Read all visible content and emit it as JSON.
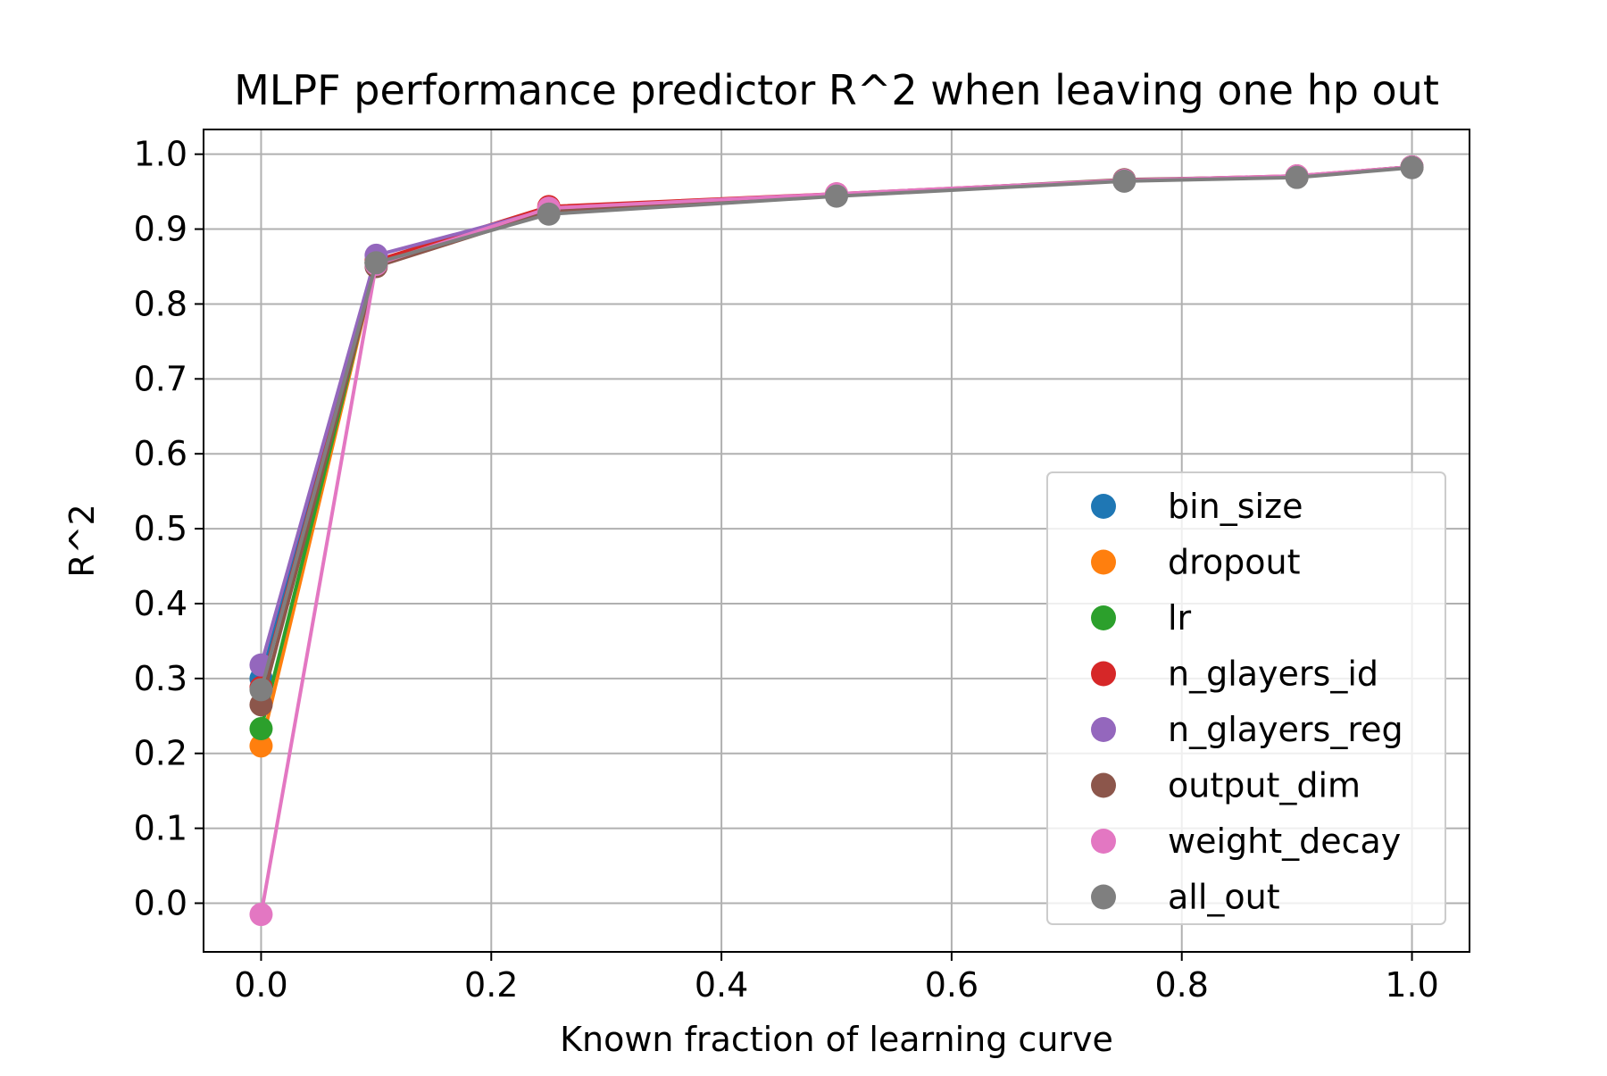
{
  "chart_data": {
    "type": "line",
    "title": "MLPF performance predictor R^2 when leaving one hp out",
    "xlabel": "Known fraction of learning curve",
    "ylabel": "R^2",
    "xlim": [
      -0.05,
      1.05
    ],
    "ylim": [
      -0.065,
      1.033
    ],
    "xticks": [
      0.0,
      0.2,
      0.4,
      0.6,
      0.8,
      1.0
    ],
    "xtick_labels": [
      "0.0",
      "0.2",
      "0.4",
      "0.6",
      "0.8",
      "1.0"
    ],
    "yticks": [
      0.0,
      0.1,
      0.2,
      0.3,
      0.4,
      0.5,
      0.6,
      0.7,
      0.8,
      0.9,
      1.0
    ],
    "ytick_labels": [
      "0.0",
      "0.1",
      "0.2",
      "0.3",
      "0.4",
      "0.5",
      "0.6",
      "0.7",
      "0.8",
      "0.9",
      "1.0"
    ],
    "grid": true,
    "legend_position": "lower-right",
    "x": [
      0.0,
      0.1,
      0.25,
      0.5,
      0.75,
      0.9,
      1.0
    ],
    "series": [
      {
        "name": "bin_size",
        "color": "#1f77b4",
        "values": [
          0.3,
          0.855,
          0.925,
          0.946,
          0.965,
          0.97,
          0.983
        ]
      },
      {
        "name": "dropout",
        "color": "#ff7f0e",
        "values": [
          0.21,
          0.855,
          0.925,
          0.946,
          0.965,
          0.97,
          0.983
        ]
      },
      {
        "name": "lr",
        "color": "#2ca02c",
        "values": [
          0.233,
          0.855,
          0.925,
          0.946,
          0.965,
          0.97,
          0.983
        ]
      },
      {
        "name": "n_glayers_id",
        "color": "#d62728",
        "values": [
          0.288,
          0.858,
          0.93,
          0.947,
          0.965,
          0.971,
          0.983
        ]
      },
      {
        "name": "n_glayers_reg",
        "color": "#9467bd",
        "values": [
          0.318,
          0.865,
          0.926,
          0.946,
          0.965,
          0.97,
          0.983
        ]
      },
      {
        "name": "output_dim",
        "color": "#8c564b",
        "values": [
          0.265,
          0.85,
          0.923,
          0.946,
          0.966,
          0.97,
          0.983
        ]
      },
      {
        "name": "weight_decay",
        "color": "#e377c2",
        "values": [
          -0.015,
          0.853,
          0.928,
          0.947,
          0.965,
          0.971,
          0.983
        ]
      },
      {
        "name": "all_out",
        "color": "#7f7f7f",
        "values": [
          0.285,
          0.855,
          0.92,
          0.944,
          0.964,
          0.969,
          0.982
        ]
      }
    ]
  }
}
